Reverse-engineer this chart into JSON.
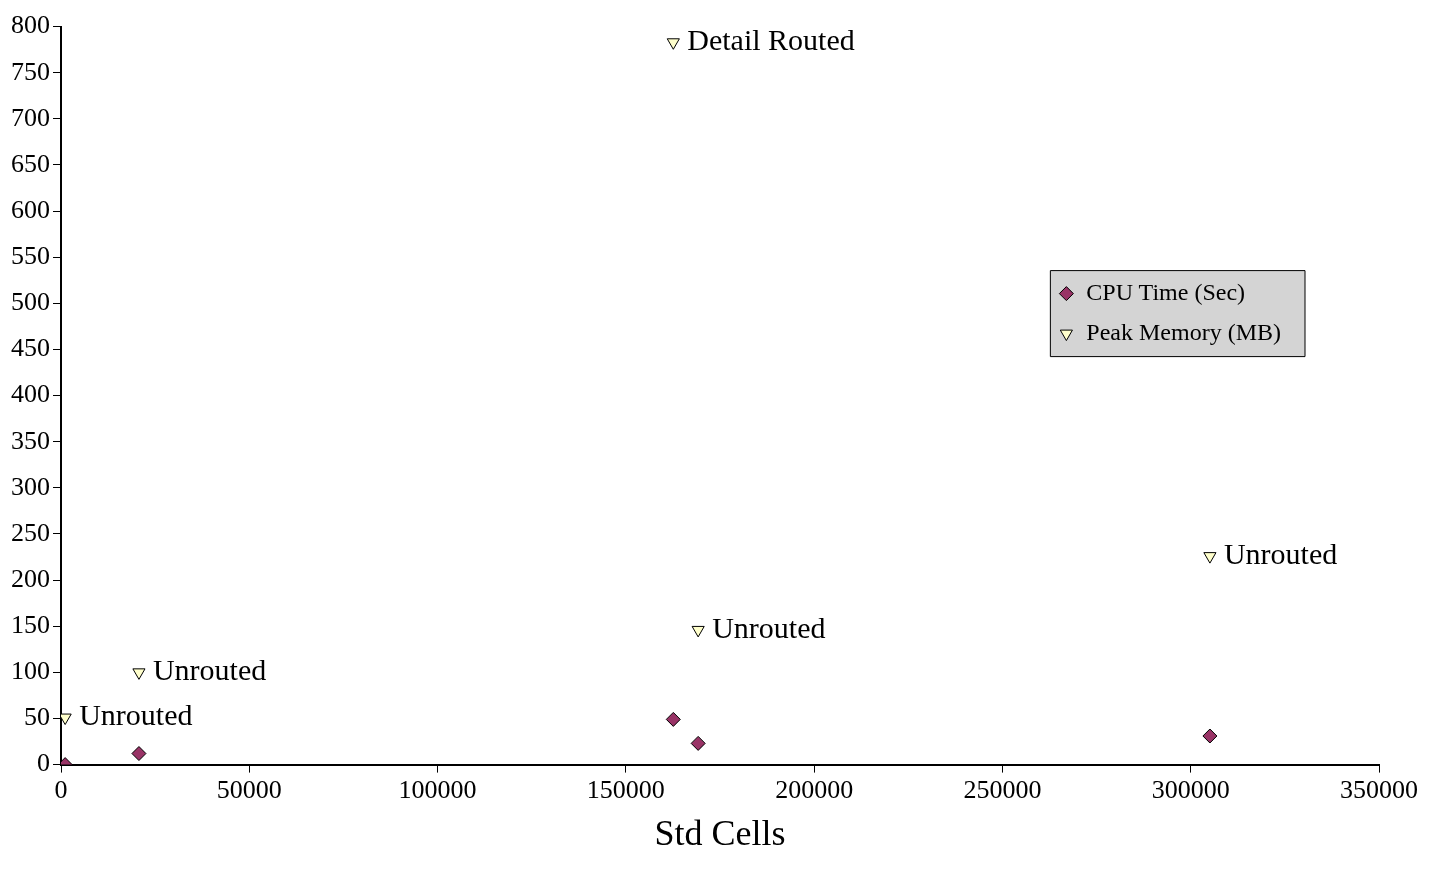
{
  "chart_data": {
    "type": "scatter",
    "xlabel": "Std Cells",
    "xlim": [
      0,
      350000
    ],
    "xticks": [
      0,
      50000,
      100000,
      150000,
      200000,
      250000,
      300000,
      350000
    ],
    "ylim": [
      0,
      800
    ],
    "yticks": [
      0,
      50,
      100,
      150,
      200,
      250,
      300,
      350,
      400,
      450,
      500,
      550,
      600,
      650,
      700,
      750,
      800
    ],
    "grid": false,
    "legend": "right",
    "series": [
      {
        "name": "CPU Time (Sec)",
        "color": "#993366",
        "marker": "diamond",
        "x": [
          1100,
          20700,
          162600,
          169200,
          305100
        ],
        "values": [
          0,
          12,
          49,
          23,
          31
        ]
      },
      {
        "name": "Peak Memory (MB)",
        "color": "#ffffcc",
        "marker": "triangle",
        "x": [
          1100,
          20700,
          162600,
          169200,
          305100
        ],
        "values": [
          51,
          100,
          783,
          146,
          226
        ]
      }
    ],
    "annotations": [
      {
        "text": "Unrouted",
        "x": 1100,
        "y": 51
      },
      {
        "text": "Unrouted",
        "x": 20700,
        "y": 100
      },
      {
        "text": "Detail Routed",
        "x": 162600,
        "y": 783
      },
      {
        "text": "Unrouted",
        "x": 169200,
        "y": 146
      },
      {
        "text": "Unrouted",
        "x": 305100,
        "y": 226
      }
    ]
  }
}
